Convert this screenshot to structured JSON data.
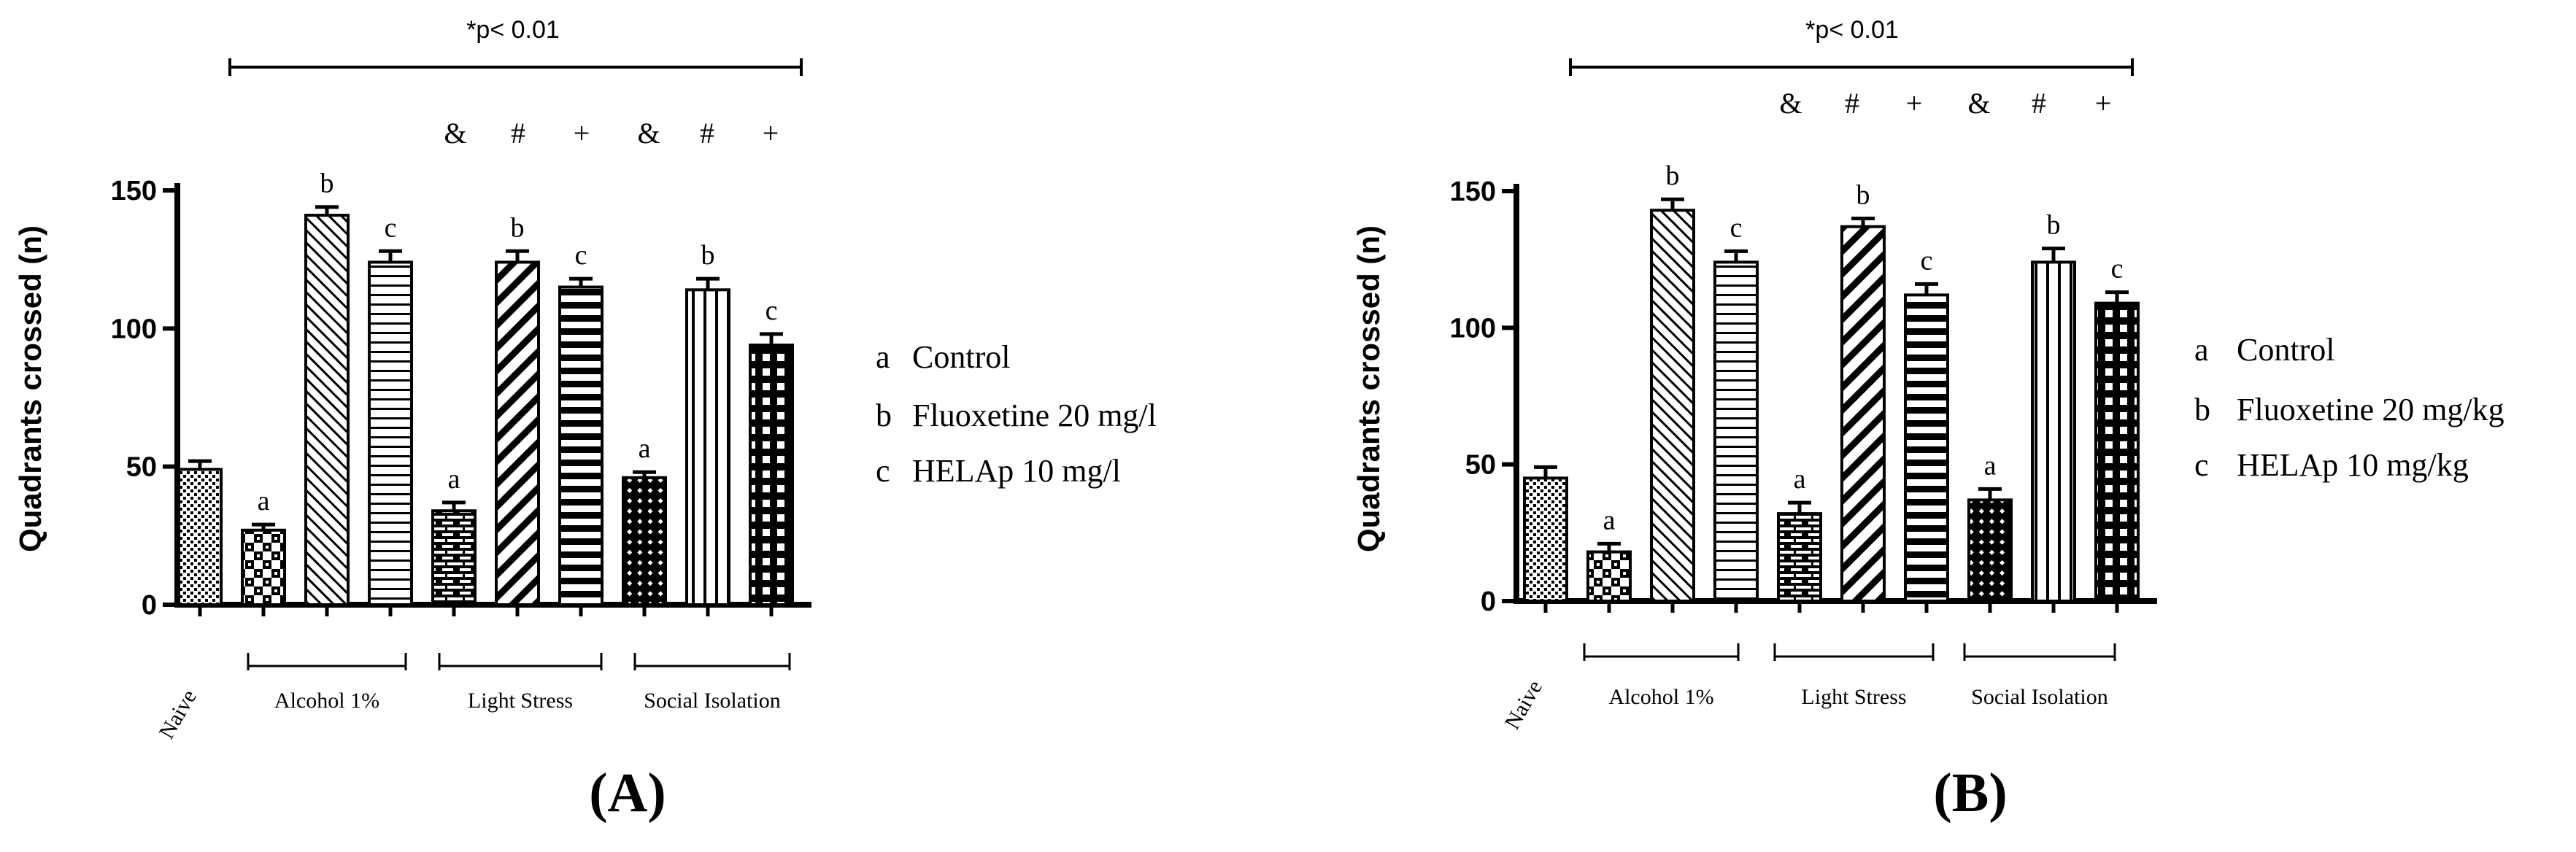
{
  "colors": {
    "ink": "#000000",
    "paper": "#ffffff"
  },
  "chart_data": [
    {
      "type": "bar",
      "panel_label": "(A)",
      "ylabel": "Quadrants crossed (n)",
      "ylim": [
        0,
        150
      ],
      "yticks": [
        "0",
        "50",
        "100",
        "150"
      ],
      "categories": [
        "Naive",
        "Alcohol 1%",
        "Alcohol 1%",
        "Alcohol 1%",
        "Light Stress",
        "Light Stress",
        "Light Stress",
        "Social Isolation",
        "Social Isolation",
        "Social Isolation"
      ],
      "values": [
        49,
        27,
        141,
        124,
        34,
        124,
        115,
        46,
        114,
        94
      ],
      "errors": [
        3,
        2,
        3,
        4,
        3,
        4,
        3,
        2,
        4,
        4
      ],
      "bar_letters": [
        "",
        "a",
        "b",
        "c",
        "a",
        "b",
        "c",
        "a",
        "b",
        "c"
      ],
      "bar_patterns": [
        "dots",
        "checker",
        "diag-back",
        "hlines",
        "brick",
        "diag-fwd-thick",
        "hlines-thick",
        "checker-diag",
        "vlines",
        "grid"
      ],
      "group_labels": [
        "Naive",
        "Alcohol 1%",
        "Light Stress",
        "Social Isolation"
      ],
      "significance": "*p< 0.01",
      "symbols": [
        "&",
        "#",
        "+",
        "&",
        "#",
        "+"
      ],
      "legend": [
        {
          "key": "a",
          "text": "Control"
        },
        {
          "key": "b",
          "text": "Fluoxetine  20 mg/l"
        },
        {
          "key": "c",
          "text": "HELAp 10 mg/l"
        }
      ]
    },
    {
      "type": "bar",
      "panel_label": "(B)",
      "ylabel": "Quadrants crossed (n)",
      "ylim": [
        0,
        150
      ],
      "yticks": [
        "0",
        "50",
        "100",
        "150"
      ],
      "categories": [
        "Naive",
        "Alcohol 1%",
        "Alcohol 1%",
        "Alcohol 1%",
        "Light Stress",
        "Light Stress",
        "Light Stress",
        "Social Isolation",
        "Social Isolation",
        "Social Isolation"
      ],
      "values": [
        45,
        18,
        143,
        124,
        32,
        137,
        112,
        37,
        124,
        109
      ],
      "errors": [
        4,
        3,
        4,
        4,
        4,
        3,
        4,
        4,
        5,
        4
      ],
      "bar_letters": [
        "",
        "a",
        "b",
        "c",
        "a",
        "b",
        "c",
        "a",
        "b",
        "c"
      ],
      "bar_patterns": [
        "dots",
        "checker",
        "diag-back",
        "hlines",
        "brick",
        "diag-fwd-thick",
        "hlines-thick",
        "checker-diag",
        "vlines",
        "grid"
      ],
      "group_labels": [
        "Naive",
        "Alcohol 1%",
        "Light Stress",
        "Social Isolation"
      ],
      "significance": "*p< 0.01",
      "symbols": [
        "&",
        "#",
        "+",
        "&",
        "#",
        "+"
      ],
      "legend": [
        {
          "key": "a",
          "text": "Control"
        },
        {
          "key": "b",
          "text": "Fluoxetine  20 mg/kg"
        },
        {
          "key": "c",
          "text": "HELAp 10 mg/kg"
        }
      ]
    }
  ]
}
